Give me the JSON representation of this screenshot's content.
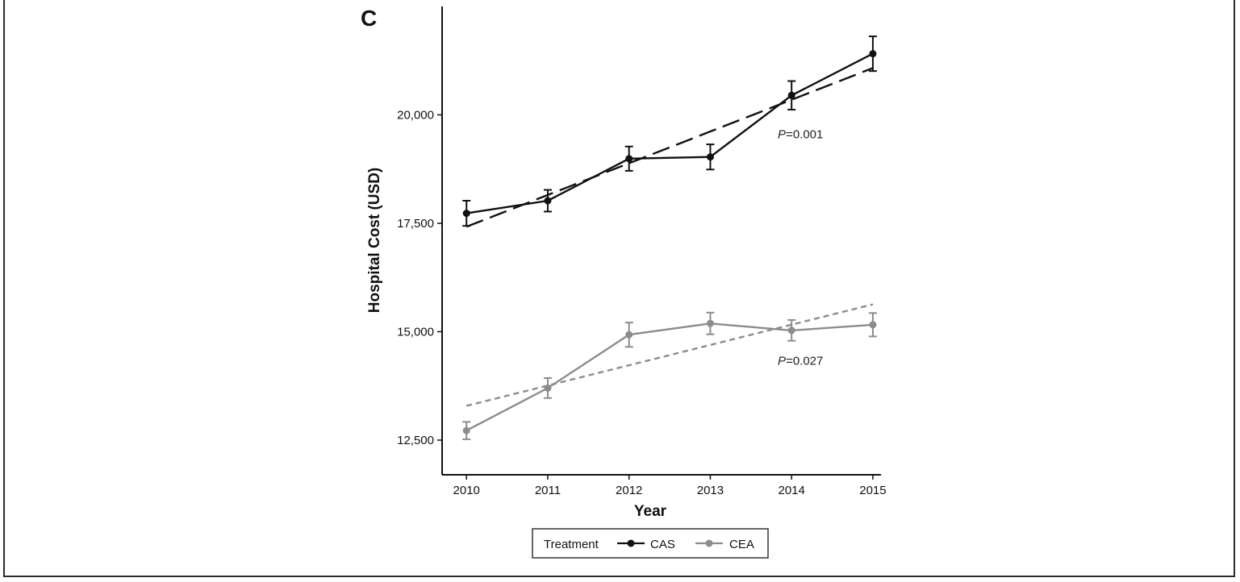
{
  "chart_data": {
    "type": "line",
    "panel_label": "C",
    "xlabel": "Year",
    "ylabel": "Hospital Cost (USD)",
    "x": [
      2010,
      2011,
      2012,
      2013,
      2014,
      2015
    ],
    "xlim": [
      2009.7,
      2015.1
    ],
    "ylim": [
      11700,
      22500
    ],
    "y_ticks": [
      12500,
      15000,
      17500,
      20000
    ],
    "y_tick_labels": [
      "12,500",
      "15,000",
      "17,500",
      "20,000"
    ],
    "x_tick_labels": [
      "2010",
      "2011",
      "2012",
      "2013",
      "2014",
      "2015"
    ],
    "grid": false,
    "series": [
      {
        "name": "CAS",
        "color": "#111111",
        "values": [
          17730,
          18020,
          18990,
          19030,
          20450,
          21410
        ],
        "error": [
          290,
          250,
          280,
          290,
          330,
          400
        ],
        "trend": [
          17420,
          21080
        ],
        "trend_dash": "long"
      },
      {
        "name": "CEA",
        "color": "#8c8c8c",
        "values": [
          12720,
          13700,
          14930,
          15190,
          15030,
          15160
        ],
        "error": [
          200,
          230,
          280,
          250,
          240,
          270
        ],
        "trend": [
          13290,
          15630
        ],
        "trend_dash": "short"
      }
    ],
    "annotations": [
      {
        "italic": "P",
        "text": "=0.001",
        "x": 2013.83,
        "y": 19460
      },
      {
        "italic": "P",
        "text": "=0.027",
        "x": 2013.83,
        "y": 14240
      }
    ],
    "legend": {
      "title": "Treatment",
      "position": "bottom-center"
    }
  }
}
